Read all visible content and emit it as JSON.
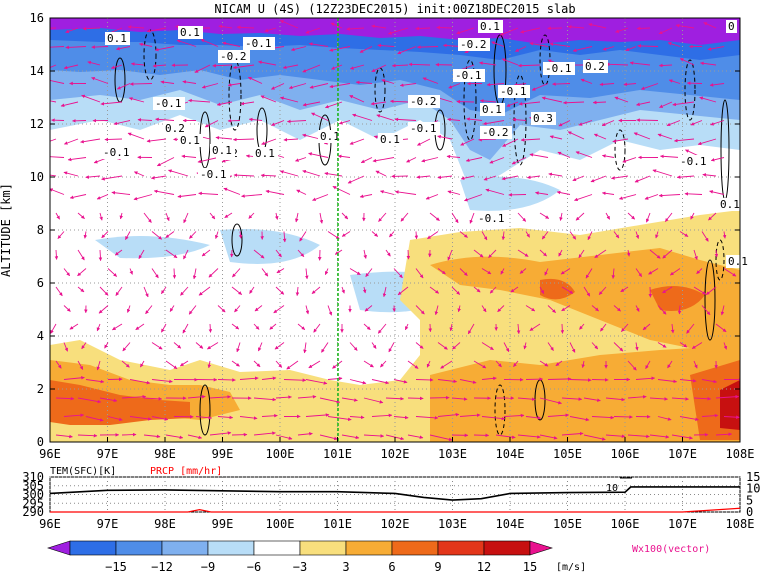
{
  "chart_data": [
    {
      "type": "heatmap",
      "title": "NICAM U (4S) (12Z23DEC2015) init:00Z18DEC2015 slab",
      "xlabel": "",
      "ylabel": "ALTITUDE [km]",
      "x_ticks": [
        "96E",
        "97E",
        "98E",
        "99E",
        "100E",
        "101E",
        "102E",
        "103E",
        "104E",
        "105E",
        "106E",
        "107E",
        "108E"
      ],
      "y_ticks": [
        "0",
        "2",
        "4",
        "6",
        "8",
        "10",
        "12",
        "14",
        "16"
      ],
      "xlim": [
        96,
        108
      ],
      "ylim": [
        0,
        16
      ],
      "marker_line_lon": 101,
      "contour_labels": [
        "0.1",
        "-0.1",
        "0.1",
        "-0.2",
        "-0.1",
        "0.2",
        "0.1",
        "-0.1",
        "0.2",
        "0.1",
        "0.1",
        "-0.2",
        "-0.1",
        "0.1",
        "0.1",
        "-0.1",
        "0.1",
        "-0.2",
        "-0.1",
        "-0.1",
        "0.1",
        "0.3",
        "-0.2",
        "0.2",
        "-0.1",
        "-0.1",
        "0.1",
        "-0.1",
        "0.1",
        "0"
      ],
      "colorbar": {
        "labels": [
          "−15",
          "−12",
          "−9",
          "−6",
          "−3",
          "3",
          "6",
          "9",
          "12",
          "15"
        ],
        "unit": "[m/s]",
        "colors": [
          "#9f1fe0",
          "#2e6ee6",
          "#4f8de8",
          "#7fb0ef",
          "#b8ddf7",
          "#ffffff",
          "#f8df7d",
          "#f7ac35",
          "#ee6a1a",
          "#e3361a",
          "#c71010",
          "#e9128f"
        ]
      },
      "vector_label": "Wx100(vector)"
    },
    {
      "type": "line",
      "title": "",
      "series": [
        {
          "name": "TEM(SFC)[K]",
          "color": "#000000",
          "x": [
            96,
            97,
            98,
            99,
            100,
            101,
            102,
            102.5,
            103,
            103.5,
            104,
            105,
            106,
            106.1,
            107,
            108
          ],
          "values": [
            300.6,
            302.4,
            302.6,
            302.1,
            301.6,
            301.6,
            300.6,
            298.3,
            296.8,
            297.6,
            300.6,
            301.1,
            301.3,
            304.3,
            304.3,
            304.3
          ]
        },
        {
          "name": "PRCP [mm/hr]",
          "color": "#ff0000",
          "x": [
            96,
            97,
            98,
            98.4,
            98.6,
            98.8,
            99,
            100,
            105,
            106,
            107,
            107.5,
            108
          ],
          "values": [
            0,
            0,
            0,
            0,
            1,
            0,
            0,
            0,
            0,
            0,
            0,
            0.8,
            1.6
          ]
        }
      ],
      "left_ticks": [
        "310",
        "305",
        "300",
        "295",
        "290"
      ],
      "right_ticks": [
        "15",
        "10",
        "5",
        "0"
      ],
      "x_ticks": [
        "96E",
        "97E",
        "98E",
        "99E",
        "100E",
        "101E",
        "102E",
        "103E",
        "104E",
        "105E",
        "106E",
        "107E",
        "108E"
      ],
      "ylim_left": [
        290,
        310
      ],
      "ylim_right": [
        0,
        15
      ],
      "annotation": "10"
    }
  ]
}
